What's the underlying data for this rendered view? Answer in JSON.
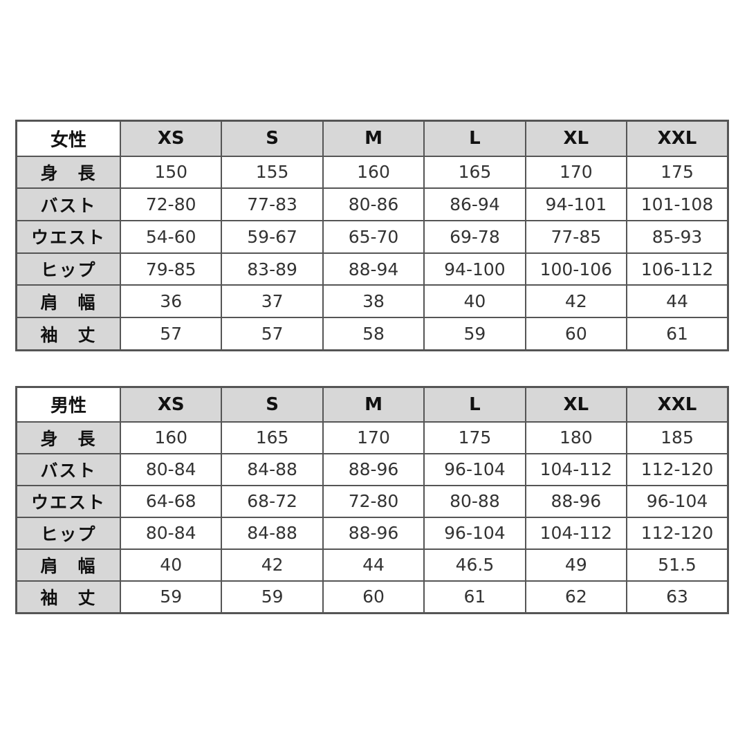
{
  "sizes": [
    "XS",
    "S",
    "M",
    "L",
    "XL",
    "XXL"
  ],
  "tables": [
    {
      "title": "女性",
      "rows": [
        {
          "label": "身　長",
          "values": [
            "150",
            "155",
            "160",
            "165",
            "170",
            "175"
          ]
        },
        {
          "label": "バスト",
          "values": [
            "72-80",
            "77-83",
            "80-86",
            "86-94",
            "94-101",
            "101-108"
          ]
        },
        {
          "label": "ウエスト",
          "values": [
            "54-60",
            "59-67",
            "65-70",
            "69-78",
            "77-85",
            "85-93"
          ]
        },
        {
          "label": "ヒップ",
          "values": [
            "79-85",
            "83-89",
            "88-94",
            "94-100",
            "100-106",
            "106-112"
          ]
        },
        {
          "label": "肩　幅",
          "values": [
            "36",
            "37",
            "38",
            "40",
            "42",
            "44"
          ]
        },
        {
          "label": "袖　丈",
          "values": [
            "57",
            "57",
            "58",
            "59",
            "60",
            "61"
          ]
        }
      ]
    },
    {
      "title": "男性",
      "rows": [
        {
          "label": "身　長",
          "values": [
            "160",
            "165",
            "170",
            "175",
            "180",
            "185"
          ]
        },
        {
          "label": "バスト",
          "values": [
            "80-84",
            "84-88",
            "88-96",
            "96-104",
            "104-112",
            "112-120"
          ]
        },
        {
          "label": "ウエスト",
          "values": [
            "64-68",
            "68-72",
            "72-80",
            "80-88",
            "88-96",
            "96-104"
          ]
        },
        {
          "label": "ヒップ",
          "values": [
            "80-84",
            "84-88",
            "88-96",
            "96-104",
            "104-112",
            "112-120"
          ]
        },
        {
          "label": "肩　幅",
          "values": [
            "40",
            "42",
            "44",
            "46.5",
            "49",
            "51.5"
          ]
        },
        {
          "label": "袖　丈",
          "values": [
            "59",
            "59",
            "60",
            "61",
            "62",
            "63"
          ]
        }
      ]
    }
  ]
}
